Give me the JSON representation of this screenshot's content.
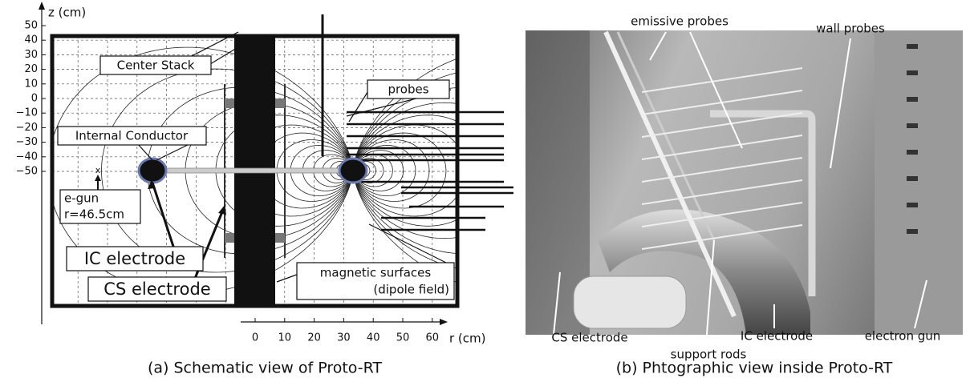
{
  "panel_a": {
    "caption": "(a) Schematic view of Proto-RT",
    "z_axis_label": "z (cm)",
    "r_axis_label": "r (cm)",
    "z_ticks": [
      "50",
      "40",
      "30",
      "20",
      "10",
      "0",
      "−10",
      "−20",
      "−30",
      "−40",
      "−50"
    ],
    "r_ticks": [
      "0",
      "10",
      "20",
      "30",
      "40",
      "50",
      "60"
    ],
    "labels": {
      "center_stack": "Center Stack",
      "internal_conductor": "Internal Conductor",
      "egun_marker": "x",
      "egun": "e-gun",
      "egun_r": "r=46.5cm",
      "ic_electrode": "IC electrode",
      "cs_electrode": "CS electrode",
      "probes": "probes",
      "magnetic_surfaces": "magnetic surfaces",
      "dipole_field": "(dipole field)"
    }
  },
  "panel_b": {
    "caption": "(b) Phtographic view inside Proto-RT",
    "labels": {
      "emissive_probes": "emissive probes",
      "wall_probes": "wall probes",
      "cs_electrode": "CS electrode",
      "ic_electrode": "IC electrode",
      "electron_gun": "electron gun",
      "support_rods": "support rods"
    }
  }
}
